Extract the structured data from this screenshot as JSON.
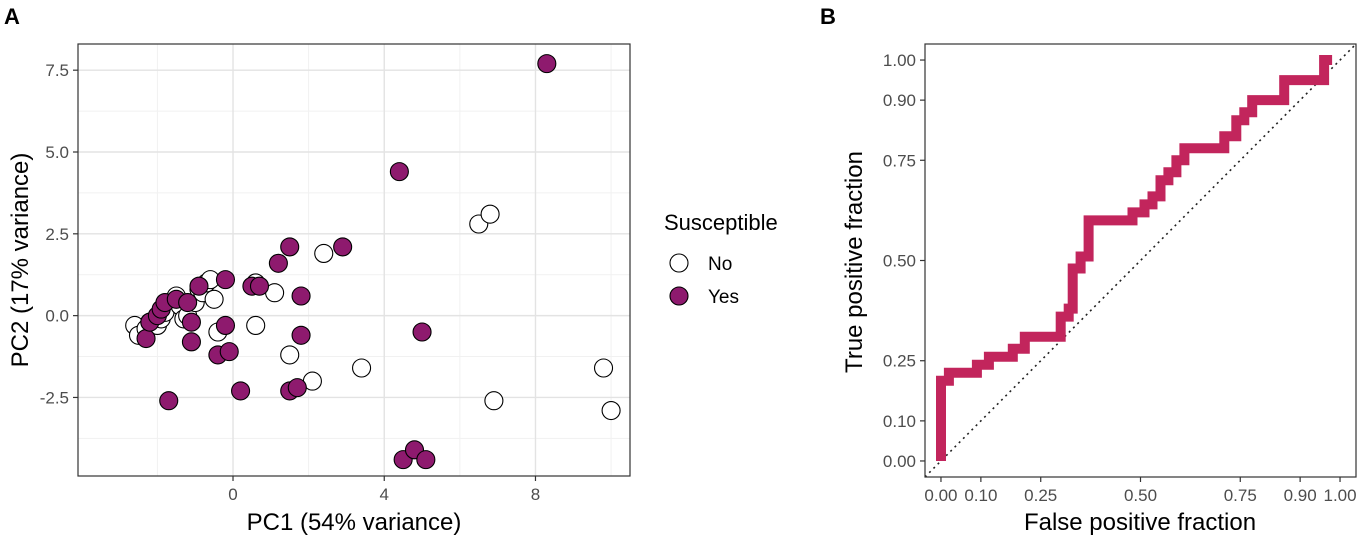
{
  "panels": {
    "a_label": "A",
    "b_label": "B"
  },
  "colors": {
    "yes_fill": "#8E1A6E",
    "no_fill": "#FFFFFF",
    "roc_line": "#C2255C",
    "grid_major": "#E3E3E3",
    "grid_minor": "#F1F1F1"
  },
  "chart_data": [
    {
      "type": "scatter",
      "title": "",
      "xlabel": "PC1 (54% variance)",
      "ylabel": "PC2 (17% variance)",
      "xlim": [
        -4.1,
        10.5
      ],
      "ylim": [
        -4.9,
        8.3
      ],
      "xticks": [
        0,
        4,
        8
      ],
      "xtick_labels": [
        "0",
        "4",
        "8"
      ],
      "yticks": [
        -2.5,
        0,
        2.5,
        5,
        7.5
      ],
      "ytick_labels": [
        "-2.5",
        "0.0",
        "2.5",
        "5.0",
        "7.5"
      ],
      "grid": true,
      "legend": {
        "title": "Susceptible",
        "position": "right",
        "entries": [
          "No",
          "Yes"
        ]
      },
      "series": [
        {
          "name": "No",
          "points": [
            [
              -2.6,
              -0.3
            ],
            [
              -2.5,
              -0.6
            ],
            [
              -2.3,
              -0.4
            ],
            [
              -2.2,
              -0.2
            ],
            [
              -2.0,
              -0.3
            ],
            [
              -1.9,
              -0.1
            ],
            [
              -1.8,
              0.1
            ],
            [
              -1.5,
              0.6
            ],
            [
              -1.4,
              0.3
            ],
            [
              -1.3,
              -0.1
            ],
            [
              -1.2,
              0.0
            ],
            [
              -1.0,
              0.4
            ],
            [
              -0.9,
              0.8
            ],
            [
              -0.8,
              0.7
            ],
            [
              -0.7,
              1.0
            ],
            [
              -0.6,
              1.1
            ],
            [
              -0.5,
              0.5
            ],
            [
              -0.4,
              -0.5
            ],
            [
              0.6,
              -0.3
            ],
            [
              0.6,
              1.0
            ],
            [
              1.1,
              0.7
            ],
            [
              1.5,
              -1.2
            ],
            [
              2.1,
              -2.0
            ],
            [
              2.4,
              1.9
            ],
            [
              3.4,
              -1.6
            ],
            [
              6.5,
              2.8
            ],
            [
              6.8,
              3.1
            ],
            [
              6.9,
              -2.6
            ],
            [
              9.8,
              -1.6
            ],
            [
              10.0,
              -2.9
            ]
          ]
        },
        {
          "name": "Yes",
          "points": [
            [
              -2.3,
              -0.7
            ],
            [
              -2.2,
              -0.2
            ],
            [
              -2.0,
              0.0
            ],
            [
              -1.9,
              0.2
            ],
            [
              -1.8,
              0.4
            ],
            [
              -1.7,
              -2.6
            ],
            [
              -1.5,
              0.5
            ],
            [
              -1.2,
              0.4
            ],
            [
              -1.1,
              -0.2
            ],
            [
              -1.1,
              -0.8
            ],
            [
              -0.9,
              0.9
            ],
            [
              -0.4,
              -1.2
            ],
            [
              -0.2,
              -0.3
            ],
            [
              -0.2,
              1.1
            ],
            [
              -0.1,
              -1.1
            ],
            [
              0.2,
              -2.3
            ],
            [
              0.5,
              0.9
            ],
            [
              0.7,
              0.9
            ],
            [
              1.2,
              1.6
            ],
            [
              1.5,
              2.1
            ],
            [
              1.5,
              -2.3
            ],
            [
              1.7,
              -2.2
            ],
            [
              1.8,
              0.6
            ],
            [
              1.8,
              -0.6
            ],
            [
              2.9,
              2.1
            ],
            [
              4.4,
              4.4
            ],
            [
              4.5,
              -4.4
            ],
            [
              4.8,
              -4.1
            ],
            [
              5.0,
              -0.5
            ],
            [
              5.1,
              -4.4
            ],
            [
              8.3,
              7.7
            ]
          ]
        }
      ]
    },
    {
      "type": "line",
      "title": "",
      "xlabel": "False positive fraction",
      "ylabel": "True positive fraction",
      "xlim": [
        -0.04,
        1.04
      ],
      "ylim": [
        -0.04,
        1.04
      ],
      "xticks": [
        0,
        0.1,
        0.25,
        0.5,
        0.75,
        0.9,
        1.0
      ],
      "xtick_labels": [
        "0.00",
        "0.10",
        "0.25",
        "0.50",
        "0.75",
        "0.90",
        "1.00"
      ],
      "yticks": [
        0,
        0.1,
        0.25,
        0.5,
        0.75,
        0.9,
        1.0
      ],
      "ytick_labels": [
        "0.00",
        "0.10",
        "0.25",
        "0.50",
        "0.75",
        "0.90",
        "1.00"
      ],
      "grid": false,
      "reference_line": "diagonal (dotted)",
      "series": [
        {
          "name": "ROC",
          "points": [
            [
              0.0,
              0.0
            ],
            [
              0.0,
              0.2
            ],
            [
              0.02,
              0.2
            ],
            [
              0.02,
              0.22
            ],
            [
              0.09,
              0.22
            ],
            [
              0.09,
              0.24
            ],
            [
              0.12,
              0.24
            ],
            [
              0.12,
              0.26
            ],
            [
              0.18,
              0.26
            ],
            [
              0.18,
              0.28
            ],
            [
              0.21,
              0.28
            ],
            [
              0.21,
              0.31
            ],
            [
              0.3,
              0.31
            ],
            [
              0.3,
              0.36
            ],
            [
              0.32,
              0.36
            ],
            [
              0.32,
              0.38
            ],
            [
              0.33,
              0.38
            ],
            [
              0.33,
              0.48
            ],
            [
              0.35,
              0.48
            ],
            [
              0.35,
              0.51
            ],
            [
              0.37,
              0.51
            ],
            [
              0.37,
              0.6
            ],
            [
              0.48,
              0.6
            ],
            [
              0.48,
              0.62
            ],
            [
              0.51,
              0.62
            ],
            [
              0.51,
              0.64
            ],
            [
              0.53,
              0.64
            ],
            [
              0.53,
              0.66
            ],
            [
              0.55,
              0.66
            ],
            [
              0.55,
              0.7
            ],
            [
              0.57,
              0.7
            ],
            [
              0.57,
              0.72
            ],
            [
              0.59,
              0.72
            ],
            [
              0.59,
              0.75
            ],
            [
              0.61,
              0.75
            ],
            [
              0.61,
              0.78
            ],
            [
              0.71,
              0.78
            ],
            [
              0.71,
              0.81
            ],
            [
              0.74,
              0.81
            ],
            [
              0.74,
              0.85
            ],
            [
              0.76,
              0.85
            ],
            [
              0.76,
              0.87
            ],
            [
              0.78,
              0.87
            ],
            [
              0.78,
              0.9
            ],
            [
              0.86,
              0.9
            ],
            [
              0.86,
              0.95
            ],
            [
              0.96,
              0.95
            ],
            [
              0.96,
              1.0
            ],
            [
              0.98,
              1.0
            ]
          ]
        }
      ]
    }
  ]
}
